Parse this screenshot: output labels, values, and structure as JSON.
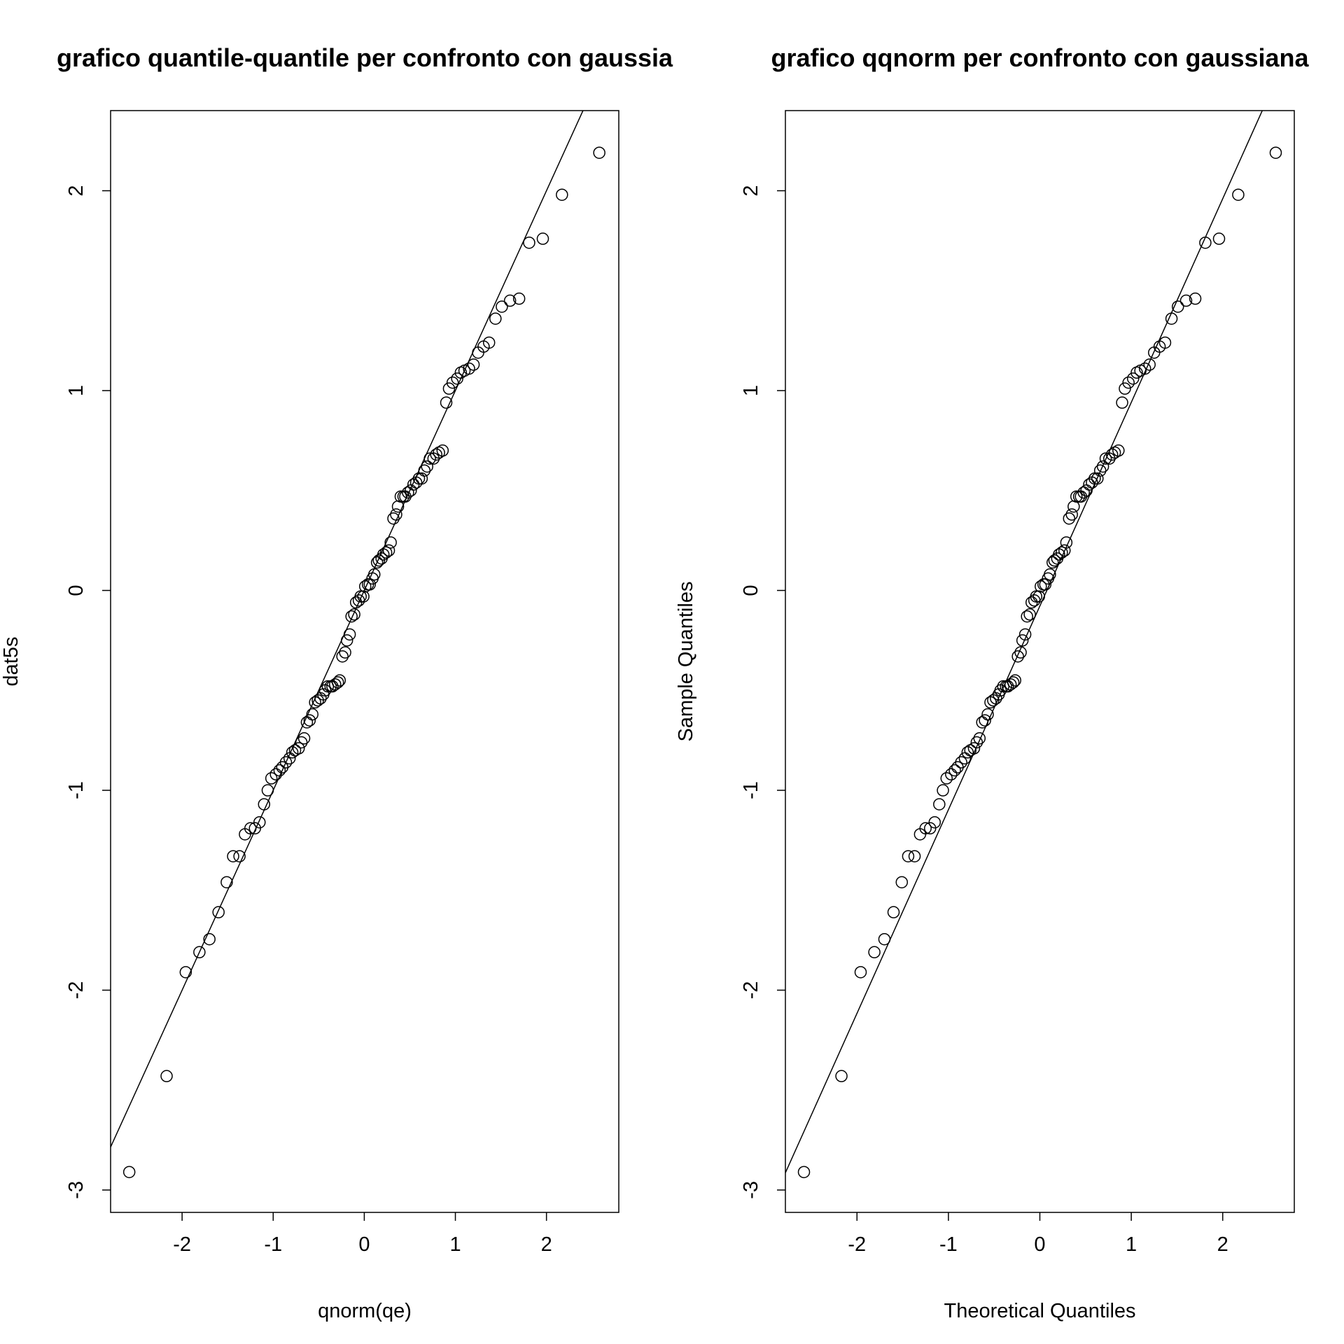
{
  "chart_data": [
    {
      "type": "scatter",
      "title": "grafico quantile-quantile per confronto con gaussia",
      "x_label": "qnorm(qe)",
      "y_label": "dat5s",
      "x": [
        -2.58,
        -2.17,
        -1.96,
        -1.81,
        -1.7,
        -1.6,
        -1.51,
        -1.44,
        -1.37,
        -1.31,
        -1.25,
        -1.2,
        -1.15,
        -1.1,
        -1.06,
        -1.02,
        -0.97,
        -0.93,
        -0.9,
        -0.86,
        -0.82,
        -0.79,
        -0.76,
        -0.72,
        -0.69,
        -0.66,
        -0.63,
        -0.6,
        -0.57,
        -0.54,
        -0.51,
        -0.48,
        -0.45,
        -0.43,
        -0.4,
        -0.37,
        -0.35,
        -0.32,
        -0.29,
        -0.27,
        -0.24,
        -0.21,
        -0.19,
        -0.16,
        -0.14,
        -0.11,
        -0.09,
        -0.06,
        -0.04,
        -0.01,
        0.01,
        0.04,
        0.06,
        0.09,
        0.11,
        0.14,
        0.16,
        0.19,
        0.21,
        0.24,
        0.27,
        0.29,
        0.32,
        0.35,
        0.37,
        0.4,
        0.43,
        0.45,
        0.48,
        0.51,
        0.54,
        0.57,
        0.6,
        0.63,
        0.66,
        0.69,
        0.72,
        0.76,
        0.79,
        0.82,
        0.86,
        0.9,
        0.93,
        0.97,
        1.02,
        1.06,
        1.1,
        1.15,
        1.2,
        1.25,
        1.31,
        1.37,
        1.44,
        1.51,
        1.6,
        1.7,
        1.81,
        1.96,
        2.17,
        2.58
      ],
      "y": [
        -2.91,
        -2.43,
        -1.91,
        -1.81,
        -1.745,
        -1.61,
        -1.46,
        -1.33,
        -1.33,
        -1.22,
        -1.19,
        -1.19,
        -1.16,
        -1.07,
        -1.0,
        -0.94,
        -0.92,
        -0.9,
        -0.885,
        -0.86,
        -0.84,
        -0.81,
        -0.8,
        -0.79,
        -0.76,
        -0.74,
        -0.66,
        -0.65,
        -0.62,
        -0.56,
        -0.55,
        -0.54,
        -0.52,
        -0.5,
        -0.48,
        -0.48,
        -0.48,
        -0.47,
        -0.46,
        -0.45,
        -0.33,
        -0.31,
        -0.25,
        -0.22,
        -0.13,
        -0.12,
        -0.06,
        -0.05,
        -0.03,
        -0.03,
        0.02,
        0.03,
        0.03,
        0.06,
        0.08,
        0.14,
        0.15,
        0.16,
        0.18,
        0.19,
        0.2,
        0.24,
        0.36,
        0.38,
        0.42,
        0.47,
        0.47,
        0.47,
        0.49,
        0.5,
        0.53,
        0.54,
        0.56,
        0.56,
        0.6,
        0.62,
        0.66,
        0.66,
        0.68,
        0.69,
        0.7,
        0.94,
        1.01,
        1.04,
        1.06,
        1.09,
        1.1,
        1.11,
        1.13,
        1.19,
        1.22,
        1.24,
        1.36,
        1.42,
        1.45,
        1.46,
        1.74,
        1.76,
        1.98,
        2.19
      ],
      "line": {
        "intercept": 0,
        "slope": 1
      },
      "xlim": [
        -2.785,
        2.794
      ],
      "ylim": [
        -3.112,
        2.401
      ],
      "xticks": [
        -2,
        -1,
        0,
        1,
        2
      ],
      "yticks": [
        -3,
        -2,
        -1,
        0,
        1,
        2
      ],
      "color": "#000000"
    },
    {
      "type": "scatter",
      "title": "grafico qqnorm per confronto con gaussiana",
      "x_label": "Theoretical Quantiles",
      "y_label": "Sample Quantiles",
      "x": [
        -2.58,
        -2.17,
        -1.96,
        -1.81,
        -1.7,
        -1.6,
        -1.51,
        -1.44,
        -1.37,
        -1.31,
        -1.25,
        -1.2,
        -1.15,
        -1.1,
        -1.06,
        -1.02,
        -0.97,
        -0.93,
        -0.9,
        -0.86,
        -0.82,
        -0.79,
        -0.76,
        -0.72,
        -0.69,
        -0.66,
        -0.63,
        -0.6,
        -0.57,
        -0.54,
        -0.51,
        -0.48,
        -0.45,
        -0.43,
        -0.4,
        -0.37,
        -0.35,
        -0.32,
        -0.29,
        -0.27,
        -0.24,
        -0.21,
        -0.19,
        -0.16,
        -0.14,
        -0.11,
        -0.09,
        -0.06,
        -0.04,
        -0.01,
        0.01,
        0.04,
        0.06,
        0.09,
        0.11,
        0.14,
        0.16,
        0.19,
        0.21,
        0.24,
        0.27,
        0.29,
        0.32,
        0.35,
        0.37,
        0.4,
        0.43,
        0.45,
        0.48,
        0.51,
        0.54,
        0.57,
        0.6,
        0.63,
        0.66,
        0.69,
        0.72,
        0.76,
        0.79,
        0.82,
        0.86,
        0.9,
        0.93,
        0.97,
        1.02,
        1.06,
        1.1,
        1.15,
        1.2,
        1.25,
        1.31,
        1.37,
        1.44,
        1.51,
        1.6,
        1.7,
        1.81,
        1.96,
        2.17,
        2.58
      ],
      "y": [
        -2.91,
        -2.43,
        -1.91,
        -1.81,
        -1.745,
        -1.61,
        -1.46,
        -1.33,
        -1.33,
        -1.22,
        -1.19,
        -1.19,
        -1.16,
        -1.07,
        -1.0,
        -0.94,
        -0.92,
        -0.9,
        -0.885,
        -0.86,
        -0.84,
        -0.81,
        -0.8,
        -0.79,
        -0.76,
        -0.74,
        -0.66,
        -0.65,
        -0.62,
        -0.56,
        -0.55,
        -0.54,
        -0.52,
        -0.5,
        -0.48,
        -0.48,
        -0.48,
        -0.47,
        -0.46,
        -0.45,
        -0.33,
        -0.31,
        -0.25,
        -0.22,
        -0.13,
        -0.12,
        -0.06,
        -0.05,
        -0.03,
        -0.03,
        0.02,
        0.03,
        0.03,
        0.06,
        0.08,
        0.14,
        0.15,
        0.16,
        0.18,
        0.19,
        0.2,
        0.24,
        0.36,
        0.38,
        0.42,
        0.47,
        0.47,
        0.47,
        0.49,
        0.5,
        0.53,
        0.54,
        0.56,
        0.56,
        0.6,
        0.62,
        0.66,
        0.66,
        0.68,
        0.69,
        0.7,
        0.94,
        1.01,
        1.04,
        1.06,
        1.09,
        1.1,
        1.11,
        1.13,
        1.19,
        1.22,
        1.24,
        1.36,
        1.42,
        1.45,
        1.46,
        1.74,
        1.76,
        1.98,
        2.19
      ],
      "line": {
        "intercept": -0.078,
        "slope": 1.019
      },
      "xlim": [
        -2.783,
        2.783
      ],
      "ylim": [
        -3.112,
        2.401
      ],
      "xticks": [
        -2,
        -1,
        0,
        1,
        2
      ],
      "yticks": [
        -3,
        -2,
        -1,
        0,
        1,
        2
      ],
      "color": "#000000"
    }
  ]
}
